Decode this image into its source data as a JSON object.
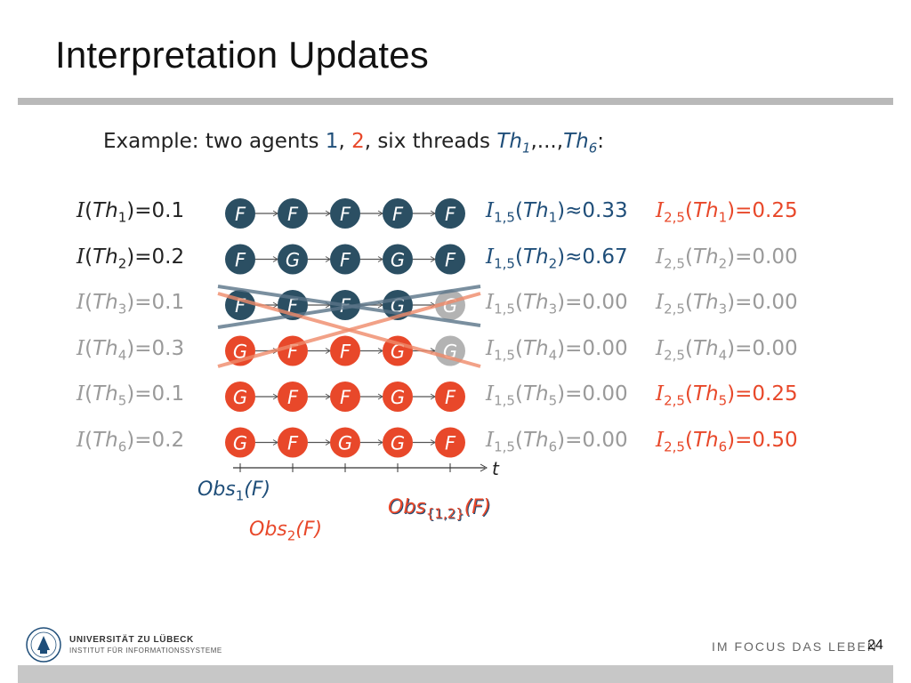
{
  "slide": {
    "title": "Interpretation Updates",
    "page_number": "24"
  },
  "intro": {
    "prefix": "Example:  two agents ",
    "agent1": "1",
    "sep1": ", ",
    "agent2": "2",
    "middle": ", six threads ",
    "th_first": "Th",
    "th_first_sub": "1",
    "ellipsis": ",...,",
    "th_last": "Th",
    "th_last_sub": "6",
    "suffix": ":"
  },
  "threads": [
    {
      "label": "Th",
      "sub": "1",
      "value": "0.1",
      "nodes": [
        "F",
        "F",
        "F",
        "F",
        "F"
      ],
      "i15_rel": "≈",
      "i15_val": "0.33",
      "i25_val": "0.25",
      "style": [
        "dark",
        "blue",
        "red"
      ]
    },
    {
      "label": "Th",
      "sub": "2",
      "value": "0.2",
      "nodes": [
        "F",
        "G",
        "F",
        "G",
        "F"
      ],
      "i15_rel": "≈",
      "i15_val": "0.67",
      "i25_val": "0.00",
      "style": [
        "dark",
        "blue",
        "gray"
      ]
    },
    {
      "label": "Th",
      "sub": "3",
      "value": "0.1",
      "nodes": [
        "F",
        "F",
        "F",
        "G",
        "G"
      ],
      "i15_rel": "=",
      "i15_val": "0.00",
      "i25_val": "0.00",
      "style": [
        "mixed",
        "gray",
        "gray"
      ]
    },
    {
      "label": "Th",
      "sub": "4",
      "value": "0.3",
      "nodes": [
        "G",
        "F",
        "F",
        "G",
        "G"
      ],
      "i15_rel": "=",
      "i15_val": "0.00",
      "i25_val": "0.00",
      "style": [
        "mixed4",
        "gray",
        "gray"
      ]
    },
    {
      "label": "Th",
      "sub": "5",
      "value": "0.1",
      "nodes": [
        "G",
        "F",
        "F",
        "G",
        "F"
      ],
      "i15_rel": "=",
      "i15_val": "0.00",
      "i25_val": "0.25",
      "style": [
        "red",
        "gray",
        "red"
      ]
    },
    {
      "label": "Th",
      "sub": "6",
      "value": "0.2",
      "nodes": [
        "G",
        "F",
        "G",
        "G",
        "F"
      ],
      "i15_rel": "=",
      "i15_val": "0.00",
      "i25_val": "0.50",
      "style": [
        "red",
        "gray",
        "red"
      ]
    }
  ],
  "interp_symbol": "I",
  "i15_sub": "1,5",
  "i25_sub": "2,5",
  "axis": {
    "t_label": "t"
  },
  "observations": {
    "obs1": {
      "name": "Obs",
      "sub": "1",
      "arg": "(F)"
    },
    "obs2": {
      "name": "Obs",
      "sub": "2",
      "arg": "(F)"
    },
    "obs12": {
      "name": "Obs",
      "sub": "{1,2}",
      "arg": "(F)"
    }
  },
  "footer": {
    "university": "UNIVERSITÄT ZU LÜBECK",
    "institute": "INSTITUT FÜR INFORMATIONSSYSTEME",
    "slogan": "IM FOCUS DAS LEBEN"
  },
  "colors": {
    "dark_blue": "#1f4e79",
    "node_dark": "#2b4f63",
    "node_red": "#e8482a",
    "node_gray": "#b3b3b3",
    "text_gray": "#9a9a9a",
    "title_rule": "#b9b9b9"
  }
}
